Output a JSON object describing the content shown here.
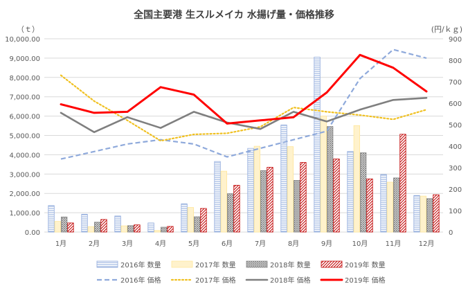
{
  "chart_data": {
    "type": "bar+line",
    "title": "全国主要港 生スルメイカ 水揚げ量・価格推移",
    "y_left_label": "（ｔ）",
    "y_right_label": "(円/ｋｇ)",
    "categories": [
      "1月",
      "2月",
      "3月",
      "4月",
      "5月",
      "6月",
      "7月",
      "8月",
      "9月",
      "10月",
      "11月",
      "12月"
    ],
    "ylim_left": [
      0,
      10000
    ],
    "yticks_left": [
      "0.00",
      "1,000.00",
      "2,000.00",
      "3,000.00",
      "4,000.00",
      "5,000.00",
      "6,000.00",
      "7,000.00",
      "8,000.00",
      "9,000.00",
      "10,000.00"
    ],
    "ylim_right": [
      0,
      900
    ],
    "yticks_right": [
      "0",
      "100",
      "200",
      "300",
      "400",
      "500",
      "600",
      "700",
      "800",
      "900"
    ],
    "grid": true,
    "legend_position": "bottom",
    "bar_series": [
      {
        "name": "2016年 数量",
        "pattern": "horizontal-lines",
        "color": "#8ea9db",
        "values": [
          1370,
          920,
          830,
          470,
          1460,
          3650,
          4330,
          5540,
          9050,
          4170,
          2980,
          1890
        ]
      },
      {
        "name": "2017年 数量",
        "pattern": "solid",
        "color": "#fff2cc",
        "values": [
          550,
          280,
          320,
          80,
          1270,
          3150,
          4440,
          4420,
          6000,
          5510,
          2580,
          1860
        ]
      },
      {
        "name": "2018年 数量",
        "pattern": "crosshatch",
        "color": "#7f7f7f",
        "values": [
          780,
          510,
          330,
          250,
          790,
          1980,
          3180,
          2670,
          5460,
          4100,
          2800,
          1730
        ]
      },
      {
        "name": "2019年 数量",
        "pattern": "diagonal",
        "color": "#c00000",
        "values": [
          470,
          650,
          370,
          290,
          1220,
          2420,
          3350,
          3600,
          3780,
          2750,
          5060,
          1930
        ]
      }
    ],
    "line_series": [
      {
        "name": "2016年 価格",
        "style": "dashed",
        "color": "#8ea9db",
        "values": [
          340,
          375,
          410,
          430,
          410,
          350,
          390,
          430,
          470,
          715,
          850,
          810
        ]
      },
      {
        "name": "2017年 価格",
        "style": "dotted",
        "color": "#f0c020",
        "values": [
          730,
          610,
          520,
          425,
          455,
          460,
          490,
          580,
          560,
          545,
          525,
          570
        ]
      },
      {
        "name": "2018年 価格",
        "style": "solid",
        "color": "#7f7f7f",
        "values": [
          555,
          465,
          535,
          485,
          560,
          510,
          480,
          560,
          515,
          570,
          615,
          625
        ]
      },
      {
        "name": "2019年 価格",
        "style": "solid-bold",
        "color": "#ff0000",
        "values": [
          595,
          555,
          560,
          675,
          640,
          505,
          520,
          535,
          650,
          825,
          765,
          655
        ]
      }
    ]
  }
}
